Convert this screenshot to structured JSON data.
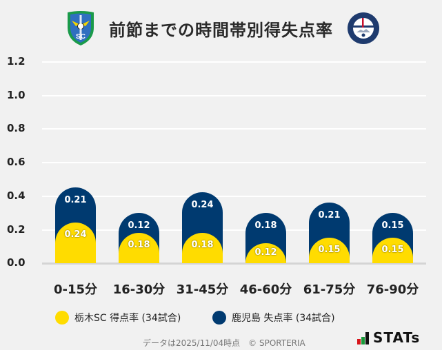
{
  "header": {
    "title": "前節までの時間帯別得失点率",
    "left_logo": "tochigi-sc-crest",
    "right_logo": "kagoshima-united-fc-crest"
  },
  "colors": {
    "series_a": "#ffdc00",
    "series_b": "#003a70",
    "background": "#f1f1f1",
    "grid": "#ffffff"
  },
  "chart_data": {
    "type": "bar",
    "stacked": true,
    "title": "前節までの時間帯別得失点率",
    "xlabel": "",
    "ylabel": "",
    "ylim": [
      0,
      1.2
    ],
    "yticks": [
      "1.2",
      "1.0",
      "0.8",
      "0.6",
      "0.4",
      "0.2",
      "0.0"
    ],
    "grid": true,
    "legend_position": "bottom",
    "categories": [
      "0-15分",
      "16-30分",
      "31-45分",
      "46-60分",
      "61-75分",
      "76-90分"
    ],
    "series": [
      {
        "name": "栃木SC 得点率 (34試合)",
        "color": "#ffdc00",
        "values": [
          0.24,
          0.18,
          0.18,
          0.12,
          0.15,
          0.15
        ],
        "labels": [
          "0.24",
          "0.18",
          "0.18",
          "0.12",
          "0.15",
          "0.15"
        ]
      },
      {
        "name": "鹿児島 失点率 (34試合)",
        "color": "#003a70",
        "values": [
          0.21,
          0.12,
          0.24,
          0.18,
          0.21,
          0.15
        ],
        "labels": [
          "0.21",
          "0.12",
          "0.24",
          "0.18",
          "0.21",
          "0.15"
        ]
      }
    ]
  },
  "legend": {
    "items": [
      {
        "label": "栃木SC 得点率 (34試合)",
        "color": "#ffdc00"
      },
      {
        "label": "鹿児島 失点率 (34試合)",
        "color": "#003a70"
      }
    ]
  },
  "footer": {
    "note": "データは2025/11/04時点　© SPORTERIA",
    "brand": "STATs"
  }
}
